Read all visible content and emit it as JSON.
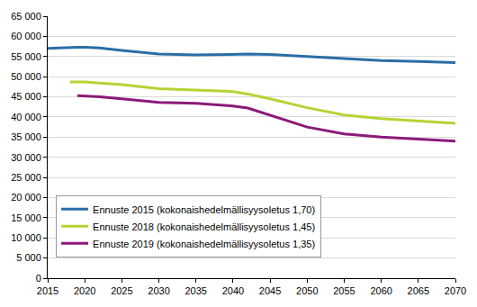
{
  "chart_data": {
    "type": "line",
    "x": [
      2015,
      2018,
      2019,
      2020,
      2022,
      2025,
      2030,
      2035,
      2040,
      2042,
      2045,
      2050,
      2055,
      2060,
      2065,
      2070
    ],
    "series": [
      {
        "name": "Ennuste 2015 (kokonaishedelmällisyysoletus 1,70)",
        "color": "#2a6ea6",
        "values": [
          57000,
          57300,
          57300,
          57300,
          57100,
          56500,
          55600,
          55400,
          55600,
          55600,
          55500,
          55000,
          54500,
          54000,
          53800,
          53500
        ]
      },
      {
        "name": "Ennuste 2018 (kokonaishedelmällisyysoletus 1,45)",
        "color": "#b5d334",
        "values": [
          null,
          48700,
          48700,
          48700,
          48400,
          48000,
          47000,
          46600,
          46300,
          45700,
          44500,
          42300,
          40500,
          39600,
          39000,
          38400
        ]
      },
      {
        "name": "Ennuste 2019 (kokonaishedelmällisyysoletus 1,35)",
        "color": "#8b1a7a",
        "values": [
          null,
          null,
          45300,
          45200,
          45000,
          44500,
          43600,
          43400,
          42700,
          42200,
          40500,
          37500,
          35800,
          35000,
          34500,
          34000
        ]
      }
    ],
    "xlim": [
      2015,
      2070
    ],
    "xticks": [
      2015,
      2020,
      2025,
      2030,
      2035,
      2040,
      2045,
      2050,
      2055,
      2060,
      2065,
      2070
    ],
    "ylim": [
      0,
      65000
    ],
    "yticks": [
      0,
      {
        "value": 5000,
        "label": "5 000"
      },
      {
        "value": 10000,
        "label": "10 000"
      },
      {
        "value": 15000,
        "label": "15 000"
      },
      {
        "value": 20000,
        "label": "20 000"
      },
      {
        "value": 25000,
        "label": "25 000"
      },
      {
        "value": 30000,
        "label": "30 000"
      },
      {
        "value": 35000,
        "label": "35 000"
      },
      {
        "value": 40000,
        "label": "40 000"
      },
      {
        "value": 45000,
        "label": "45 000"
      },
      {
        "value": 50000,
        "label": "50 000"
      },
      {
        "value": 55000,
        "label": "55 000"
      },
      {
        "value": 60000,
        "label": "60 000"
      },
      {
        "value": 65000,
        "label": "65 000"
      }
    ],
    "grid": true,
    "legend": "lower left"
  }
}
